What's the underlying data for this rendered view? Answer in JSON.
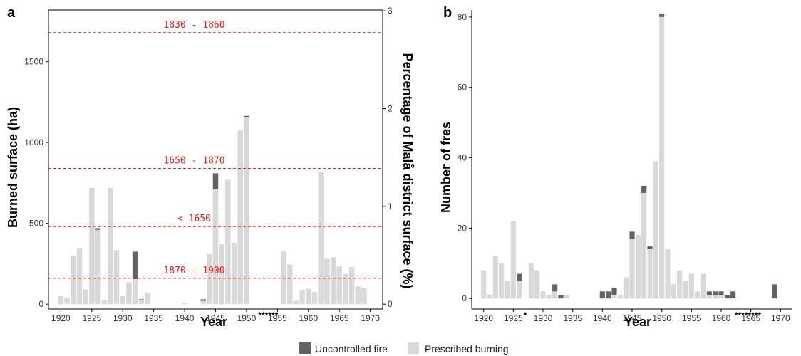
{
  "colors": {
    "uncontrolled": "#636363",
    "prescribed": "#d9d9d9",
    "ref_line": "#e02020",
    "axis": "#000000"
  },
  "legend": {
    "uncontrolled_label": "Uncontrolled fire",
    "prescribed_label": "Prescribed burning"
  },
  "chart_data": [
    {
      "panel": "a",
      "type": "bar",
      "stacked": true,
      "xlabel": "Year",
      "ylabel": "Burned surface (ha)",
      "y2label": "Percentage of Malå district surface (%)",
      "xlim": [
        1918,
        1972
      ],
      "ylim": [
        -30,
        1820
      ],
      "xticks": [
        1920,
        1925,
        1930,
        1935,
        1940,
        1945,
        1950,
        1955,
        1960,
        1965,
        1970
      ],
      "yticks": [
        0,
        500,
        1000,
        1500
      ],
      "y2ticks": [
        0,
        1,
        2,
        3
      ],
      "y2_ha_per_percent": 605,
      "reference_lines": [
        {
          "label": "1830 - 1860",
          "y": 1680
        },
        {
          "label": "1650 - 1870",
          "y": 840
        },
        {
          "label": "< 1650",
          "y": 480
        },
        {
          "label": "1870 - 1900",
          "y": 160
        }
      ],
      "missing_marker": "******",
      "missing_years": [
        1951,
        1952,
        1953,
        1954,
        1955,
        1956
      ],
      "years": [
        1920,
        1921,
        1922,
        1923,
        1924,
        1925,
        1926,
        1927,
        1928,
        1929,
        1930,
        1931,
        1932,
        1933,
        1934,
        1935,
        1936,
        1937,
        1938,
        1939,
        1940,
        1941,
        1942,
        1943,
        1944,
        1945,
        1946,
        1947,
        1948,
        1949,
        1950,
        1951,
        1952,
        1953,
        1954,
        1955,
        1956,
        1957,
        1958,
        1959,
        1960,
        1961,
        1962,
        1963,
        1964,
        1965,
        1966,
        1967,
        1968,
        1969
      ],
      "series": [
        {
          "name": "Prescribed burning",
          "values": [
            50,
            40,
            300,
            345,
            90,
            720,
            460,
            25,
            720,
            335,
            50,
            135,
            155,
            25,
            70,
            0,
            0,
            0,
            0,
            0,
            8,
            0,
            0,
            20,
            310,
            710,
            370,
            770,
            380,
            1075,
            1155,
            0,
            0,
            0,
            0,
            0,
            330,
            245,
            20,
            85,
            95,
            75,
            820,
            280,
            290,
            235,
            185,
            230,
            110,
            100
          ]
        },
        {
          "name": "Uncontrolled fire",
          "values": [
            0,
            0,
            0,
            0,
            0,
            0,
            10,
            0,
            0,
            0,
            0,
            0,
            170,
            5,
            0,
            0,
            0,
            0,
            0,
            0,
            0,
            0,
            0,
            10,
            0,
            100,
            0,
            0,
            0,
            0,
            10,
            0,
            0,
            0,
            0,
            0,
            0,
            0,
            0,
            0,
            0,
            0,
            0,
            0,
            0,
            0,
            0,
            0,
            0,
            0
          ]
        }
      ]
    },
    {
      "panel": "b",
      "type": "bar",
      "stacked": true,
      "xlabel": "Year",
      "ylabel": "Number of fres",
      "xlim": [
        1918,
        1972
      ],
      "ylim": [
        -3,
        82
      ],
      "xticks": [
        1920,
        1925,
        1930,
        1935,
        1940,
        1945,
        1950,
        1955,
        1960,
        1965,
        1970
      ],
      "yticks": [
        0,
        20,
        40,
        60,
        80
      ],
      "missing_markers": [
        {
          "text": "*",
          "years": [
            1927
          ]
        },
        {
          "text": "********",
          "years": [
            1961,
            1962,
            1963,
            1964,
            1965,
            1966,
            1967,
            1968
          ]
        }
      ],
      "years": [
        1920,
        1921,
        1922,
        1923,
        1924,
        1925,
        1926,
        1927,
        1928,
        1929,
        1930,
        1931,
        1932,
        1933,
        1934,
        1935,
        1936,
        1937,
        1938,
        1939,
        1940,
        1941,
        1942,
        1943,
        1944,
        1945,
        1946,
        1947,
        1948,
        1949,
        1950,
        1951,
        1952,
        1953,
        1954,
        1955,
        1956,
        1957,
        1958,
        1959,
        1960,
        1961,
        1962,
        1963,
        1964,
        1965,
        1966,
        1967,
        1968,
        1969
      ],
      "series": [
        {
          "name": "Prescribed burning",
          "values": [
            8,
            1,
            12,
            10,
            5,
            22,
            5,
            0,
            10,
            8,
            2,
            1,
            2,
            0,
            1,
            0,
            0,
            0,
            0,
            0,
            0,
            0,
            1,
            1,
            6,
            17,
            18,
            30,
            14,
            39,
            80,
            14,
            4,
            8,
            5,
            7,
            2,
            7,
            1,
            1,
            1,
            0,
            0,
            0,
            0,
            0,
            0,
            0,
            0,
            0
          ]
        },
        {
          "name": "Uncontrolled fire",
          "values": [
            0,
            0,
            0,
            0,
            0,
            0,
            2,
            0,
            0,
            0,
            0,
            0,
            2,
            1,
            0,
            0,
            0,
            0,
            0,
            0,
            2,
            2,
            2,
            0,
            0,
            2,
            0,
            2,
            1,
            0,
            1,
            0,
            0,
            0,
            0,
            0,
            0,
            0,
            1,
            1,
            1,
            1,
            2,
            0,
            0,
            0,
            0,
            0,
            0,
            4
          ]
        }
      ]
    }
  ],
  "panel_tags": {
    "a": "a",
    "b": "b"
  }
}
